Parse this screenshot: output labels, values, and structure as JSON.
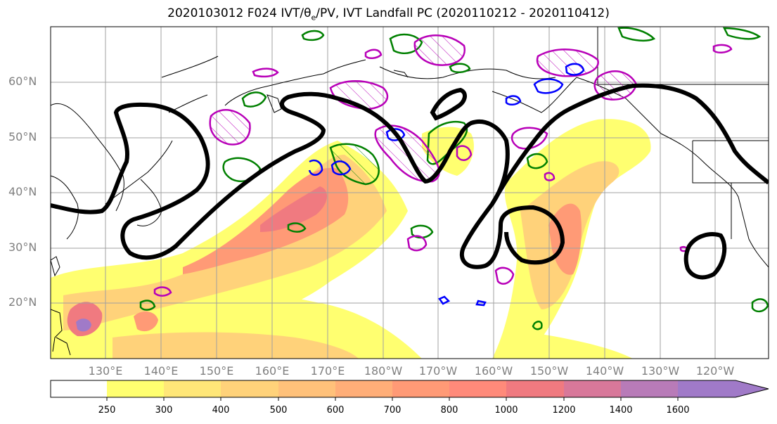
{
  "title": {
    "pre": "2020103012 F024 IVT/θ",
    "sub": "e",
    "post": "/PV, IVT Landfall PC (2020110212 - 2020110412)"
  },
  "map_labels": {
    "lat": [
      "60°N",
      "50°N",
      "40°N",
      "30°N",
      "20°N"
    ],
    "lon": [
      "130°E",
      "140°E",
      "150°E",
      "160°E",
      "170°E",
      "180°W",
      "170°W",
      "160°W",
      "150°W",
      "140°W",
      "130°W",
      "120°W"
    ]
  },
  "colorbar": {
    "ticks": [
      "250",
      "300",
      "400",
      "500",
      "600",
      "700",
      "800",
      "1000",
      "1200",
      "1400",
      "1600"
    ],
    "colors": [
      "#ffff70",
      "#ffe778",
      "#ffd27a",
      "#ffc17a",
      "#ffae78",
      "#ff9a76",
      "#ff8a7a",
      "#f07a80",
      "#d8789a",
      "#b87bb8",
      "#a07ac8"
    ]
  },
  "contour_colors": {
    "ivt_landfall": "#000000",
    "theta_e": "#008000",
    "pv": "#b800b8",
    "pv_neg": "#0000ff"
  }
}
